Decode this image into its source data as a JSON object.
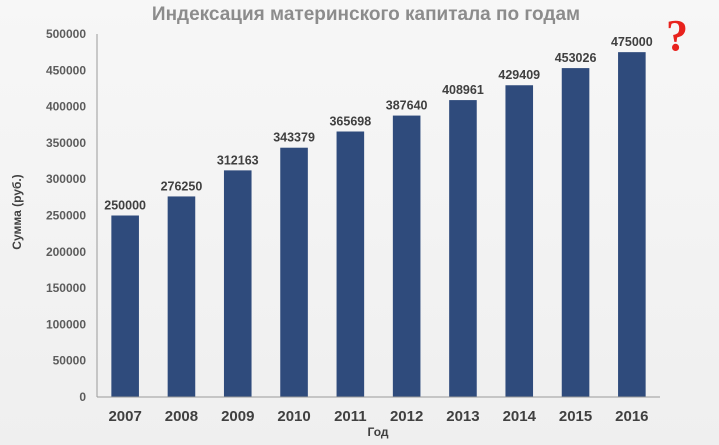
{
  "chart_data": {
    "type": "bar",
    "title": "Индексация материнского капитала по годам",
    "xlabel": "Год",
    "ylabel": "Сумма (руб.)",
    "ylim": [
      0,
      500000
    ],
    "ytick_step": 50000,
    "categories": [
      "2007",
      "2008",
      "2009",
      "2010",
      "2011",
      "2012",
      "2013",
      "2014",
      "2015",
      "2016"
    ],
    "values": [
      250000,
      276250,
      312163,
      343379,
      365698,
      387640,
      408961,
      429409,
      453026,
      475000
    ],
    "data_labels": [
      "250000",
      "276250",
      "312163",
      "343379",
      "365698",
      "387640",
      "408961",
      "429409",
      "453026",
      "475000"
    ],
    "bar_color": "#2f4b7c",
    "grid": false,
    "legend": "none",
    "annotation": {
      "text": "?",
      "color": "#e8221d"
    }
  }
}
